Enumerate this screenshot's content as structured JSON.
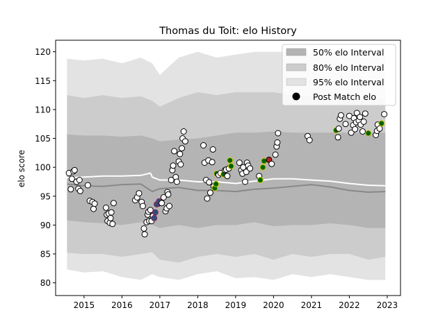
{
  "chart_data": {
    "type": "scatter",
    "title": "Thomas du Toit: elo History",
    "xlabel": "",
    "ylabel": "elo score",
    "xlim": [
      2014.25,
      2023.35
    ],
    "ylim": [
      77.8,
      122.0
    ],
    "x_ticks": [
      "2015",
      "2016",
      "2017",
      "2018",
      "2019",
      "2020",
      "2021",
      "2022",
      "2023"
    ],
    "y_ticks": [
      "80",
      "85",
      "90",
      "95",
      "100",
      "105",
      "110",
      "115",
      "120"
    ],
    "grid": false,
    "legend": {
      "placement": "top-right",
      "entries": [
        {
          "key": "band50",
          "label": "50% elo Interval"
        },
        {
          "key": "band80",
          "label": "80% elo Interval"
        },
        {
          "key": "band95",
          "label": "95% elo Interval"
        },
        {
          "key": "points",
          "label": "Post Match elo"
        }
      ]
    },
    "colors": {
      "band95": "#e3e3e3",
      "band80": "#cccccc",
      "band50": "#b4b4b4",
      "median_line": "#888888",
      "mean_line": "#ffffff",
      "point_face": "#ffffff",
      "point_edge": "#000000",
      "win_face": "#006400",
      "win_edge": "#d4c800",
      "loss_face": "#b22222",
      "loss_edge": "#000000",
      "special_face": "#2f4f7f",
      "special_edge": "#8b2252"
    },
    "band_x": [
      2014.55,
      2015.0,
      2015.5,
      2016.0,
      2016.5,
      2016.8,
      2017.0,
      2017.5,
      2018.0,
      2018.5,
      2019.0,
      2019.5,
      2020.0,
      2020.5,
      2021.0,
      2021.5,
      2022.0,
      2022.5,
      2022.95
    ],
    "band95": {
      "upper": [
        118.8,
        118.5,
        118.8,
        118.0,
        119.0,
        118.0,
        116.0,
        119.0,
        120.0,
        119.0,
        119.5,
        120.0,
        120.0,
        120.0,
        119.7,
        119.5,
        119.8,
        120.0,
        119.5
      ],
      "lower": [
        82.3,
        81.8,
        82.0,
        81.0,
        80.5,
        81.5,
        81.0,
        80.5,
        81.5,
        82.0,
        80.8,
        81.0,
        80.5,
        81.5,
        81.0,
        81.5,
        81.0,
        80.5,
        80.5
      ]
    },
    "band80": {
      "upper": [
        112.5,
        112.0,
        112.5,
        112.0,
        112.3,
        111.5,
        110.5,
        112.0,
        113.0,
        112.5,
        113.0,
        113.0,
        113.0,
        112.5,
        112.3,
        112.5,
        112.5,
        112.0,
        111.8
      ],
      "lower": [
        85.2,
        85.0,
        85.0,
        84.5,
        85.0,
        85.3,
        84.0,
        83.5,
        84.5,
        85.0,
        84.5,
        85.0,
        84.0,
        85.0,
        84.5,
        85.0,
        85.0,
        84.0,
        84.5
      ]
    },
    "band50": {
      "upper": [
        105.7,
        105.5,
        105.5,
        105.3,
        105.5,
        105.0,
        104.5,
        104.8,
        105.0,
        105.5,
        106.0,
        106.0,
        106.2,
        106.0,
        106.0,
        106.0,
        106.0,
        106.0,
        106.0
      ],
      "lower": [
        90.8,
        90.5,
        90.3,
        90.0,
        90.5,
        90.0,
        89.5,
        90.0,
        89.5,
        90.0,
        90.0,
        90.5,
        89.8,
        90.0,
        90.0,
        90.3,
        90.0,
        89.5,
        89.5
      ]
    },
    "median_line": {
      "x": [
        2014.55,
        2015.0,
        2015.5,
        2016.0,
        2016.5,
        2016.8,
        2017.0,
        2017.5,
        2018.0,
        2018.5,
        2019.0,
        2019.5,
        2020.0,
        2020.5,
        2021.0,
        2021.5,
        2022.0,
        2022.5,
        2022.95
      ],
      "y": [
        97.1,
        96.8,
        96.7,
        97.0,
        97.1,
        95.8,
        96.3,
        96.5,
        96.0,
        96.0,
        95.8,
        96.2,
        96.4,
        96.7,
        97.0,
        96.6,
        96.0,
        95.7,
        95.8
      ]
    },
    "mean_line": {
      "x": [
        2014.55,
        2015.0,
        2015.5,
        2016.0,
        2016.5,
        2016.75,
        2016.8,
        2017.0,
        2017.5,
        2018.0,
        2018.5,
        2019.0,
        2019.5,
        2020.0,
        2020.5,
        2021.0,
        2021.5,
        2022.0,
        2022.5,
        2022.95
      ],
      "y": [
        98.2,
        98.3,
        98.5,
        98.5,
        98.6,
        99.0,
        98.3,
        97.8,
        97.8,
        97.5,
        97.5,
        97.2,
        97.6,
        98.0,
        98.0,
        97.8,
        97.6,
        97.2,
        96.9,
        96.8
      ]
    },
    "points": [
      {
        "x": 2014.6,
        "y": 99.0
      },
      {
        "x": 2014.65,
        "y": 96.2
      },
      {
        "x": 2014.68,
        "y": 98.0
      },
      {
        "x": 2014.72,
        "y": 99.3
      },
      {
        "x": 2014.75,
        "y": 99.5
      },
      {
        "x": 2014.8,
        "y": 97.5
      },
      {
        "x": 2014.85,
        "y": 96.3
      },
      {
        "x": 2014.88,
        "y": 97.8
      },
      {
        "x": 2014.9,
        "y": 95.9
      },
      {
        "x": 2015.1,
        "y": 96.9
      },
      {
        "x": 2015.15,
        "y": 94.2
      },
      {
        "x": 2015.22,
        "y": 94.0
      },
      {
        "x": 2015.25,
        "y": 92.8
      },
      {
        "x": 2015.28,
        "y": 93.7
      },
      {
        "x": 2015.58,
        "y": 93.0
      },
      {
        "x": 2015.6,
        "y": 91.8
      },
      {
        "x": 2015.62,
        "y": 90.7
      },
      {
        "x": 2015.65,
        "y": 92.0
      },
      {
        "x": 2015.68,
        "y": 90.4
      },
      {
        "x": 2015.7,
        "y": 91.2
      },
      {
        "x": 2015.72,
        "y": 92.2
      },
      {
        "x": 2015.75,
        "y": 90.2
      },
      {
        "x": 2015.78,
        "y": 93.8
      },
      {
        "x": 2016.35,
        "y": 94.3
      },
      {
        "x": 2016.4,
        "y": 94.8
      },
      {
        "x": 2016.45,
        "y": 95.5
      },
      {
        "x": 2016.52,
        "y": 94.0
      },
      {
        "x": 2016.55,
        "y": 93.3
      },
      {
        "x": 2016.58,
        "y": 89.4
      },
      {
        "x": 2016.6,
        "y": 88.4
      },
      {
        "x": 2016.65,
        "y": 90.5
      },
      {
        "x": 2016.68,
        "y": 91.8
      },
      {
        "x": 2016.7,
        "y": 92.3
      },
      {
        "x": 2016.72,
        "y": 90.7
      },
      {
        "x": 2016.75,
        "y": 92.6
      },
      {
        "x": 2016.78,
        "y": 90.7
      },
      {
        "x": 2016.82,
        "y": 91.6
      },
      {
        "x": 2016.95,
        "y": 93.7
      },
      {
        "x": 2016.85,
        "y": 91.2,
        "kind": "special"
      },
      {
        "x": 2016.88,
        "y": 92.2,
        "kind": "special"
      },
      {
        "x": 2016.92,
        "y": 93.6,
        "kind": "special"
      },
      {
        "x": 2016.98,
        "y": 94.1,
        "kind": "special"
      },
      {
        "x": 2017.05,
        "y": 93.8
      },
      {
        "x": 2017.1,
        "y": 94.8
      },
      {
        "x": 2017.15,
        "y": 92.4
      },
      {
        "x": 2017.18,
        "y": 92.9
      },
      {
        "x": 2017.2,
        "y": 95.7
      },
      {
        "x": 2017.22,
        "y": 95.3
      },
      {
        "x": 2017.25,
        "y": 93.3
      },
      {
        "x": 2017.3,
        "y": 97.8
      },
      {
        "x": 2017.33,
        "y": 99.5
      },
      {
        "x": 2017.35,
        "y": 100.3
      },
      {
        "x": 2017.38,
        "y": 102.8
      },
      {
        "x": 2017.42,
        "y": 98.3
      },
      {
        "x": 2017.45,
        "y": 97.5
      },
      {
        "x": 2017.5,
        "y": 101.0
      },
      {
        "x": 2017.53,
        "y": 102.3
      },
      {
        "x": 2017.55,
        "y": 100.5
      },
      {
        "x": 2017.58,
        "y": 103.3
      },
      {
        "x": 2017.6,
        "y": 105.0
      },
      {
        "x": 2017.63,
        "y": 106.2
      },
      {
        "x": 2017.67,
        "y": 104.5
      },
      {
        "x": 2018.15,
        "y": 103.8
      },
      {
        "x": 2018.18,
        "y": 100.8
      },
      {
        "x": 2018.22,
        "y": 97.8
      },
      {
        "x": 2018.25,
        "y": 94.6
      },
      {
        "x": 2018.28,
        "y": 101.2
      },
      {
        "x": 2018.3,
        "y": 97.4
      },
      {
        "x": 2018.33,
        "y": 95.6
      },
      {
        "x": 2018.38,
        "y": 100.9
      },
      {
        "x": 2018.4,
        "y": 103.1
      },
      {
        "x": 2018.42,
        "y": 96.7
      },
      {
        "x": 2018.45,
        "y": 96.4,
        "kind": "win"
      },
      {
        "x": 2018.48,
        "y": 97.1,
        "kind": "win"
      },
      {
        "x": 2018.5,
        "y": 98.9,
        "kind": "win"
      },
      {
        "x": 2018.55,
        "y": 98.7
      },
      {
        "x": 2018.6,
        "y": 99.0
      },
      {
        "x": 2018.68,
        "y": 98.8,
        "kind": "win"
      },
      {
        "x": 2018.72,
        "y": 99.5
      },
      {
        "x": 2018.75,
        "y": 99.6
      },
      {
        "x": 2018.78,
        "y": 98.5
      },
      {
        "x": 2018.82,
        "y": 99.8
      },
      {
        "x": 2018.85,
        "y": 101.2,
        "kind": "win"
      },
      {
        "x": 2018.88,
        "y": 100.2,
        "kind": "win"
      },
      {
        "x": 2019.1,
        "y": 100.8
      },
      {
        "x": 2019.15,
        "y": 99.5
      },
      {
        "x": 2019.18,
        "y": 98.9
      },
      {
        "x": 2019.2,
        "y": 100.0
      },
      {
        "x": 2019.25,
        "y": 97.5
      },
      {
        "x": 2019.28,
        "y": 99.2
      },
      {
        "x": 2019.3,
        "y": 100.8
      },
      {
        "x": 2019.33,
        "y": 100.3
      },
      {
        "x": 2019.38,
        "y": 99.8
      },
      {
        "x": 2019.62,
        "y": 98.5
      },
      {
        "x": 2019.65,
        "y": 97.8,
        "kind": "win"
      },
      {
        "x": 2019.72,
        "y": 100.0,
        "kind": "win"
      },
      {
        "x": 2019.75,
        "y": 101.1,
        "kind": "win"
      },
      {
        "x": 2019.88,
        "y": 101.3,
        "kind": "loss"
      },
      {
        "x": 2019.95,
        "y": 100.6
      },
      {
        "x": 2020.05,
        "y": 102.2
      },
      {
        "x": 2020.08,
        "y": 103.6
      },
      {
        "x": 2020.1,
        "y": 104.3
      },
      {
        "x": 2020.12,
        "y": 105.9
      },
      {
        "x": 2020.9,
        "y": 105.4
      },
      {
        "x": 2020.95,
        "y": 104.7
      },
      {
        "x": 2021.65,
        "y": 106.4,
        "kind": "win"
      },
      {
        "x": 2021.7,
        "y": 105.2
      },
      {
        "x": 2021.72,
        "y": 106.7
      },
      {
        "x": 2021.75,
        "y": 108.4
      },
      {
        "x": 2021.78,
        "y": 109.0
      },
      {
        "x": 2021.9,
        "y": 107.5
      },
      {
        "x": 2022.0,
        "y": 108.9
      },
      {
        "x": 2022.05,
        "y": 106.0
      },
      {
        "x": 2022.1,
        "y": 107.3
      },
      {
        "x": 2022.12,
        "y": 108.5
      },
      {
        "x": 2022.15,
        "y": 106.6
      },
      {
        "x": 2022.18,
        "y": 107.8
      },
      {
        "x": 2022.2,
        "y": 109.4
      },
      {
        "x": 2022.25,
        "y": 108.1
      },
      {
        "x": 2022.28,
        "y": 108.7
      },
      {
        "x": 2022.3,
        "y": 107.4
      },
      {
        "x": 2022.35,
        "y": 106.2
      },
      {
        "x": 2022.38,
        "y": 107.9
      },
      {
        "x": 2022.42,
        "y": 109.3
      },
      {
        "x": 2022.5,
        "y": 105.9,
        "kind": "win"
      },
      {
        "x": 2022.7,
        "y": 105.6
      },
      {
        "x": 2022.73,
        "y": 106.3
      },
      {
        "x": 2022.75,
        "y": 107.4
      },
      {
        "x": 2022.8,
        "y": 106.7
      },
      {
        "x": 2022.85,
        "y": 107.6,
        "kind": "win"
      },
      {
        "x": 2022.92,
        "y": 109.2
      }
    ]
  }
}
